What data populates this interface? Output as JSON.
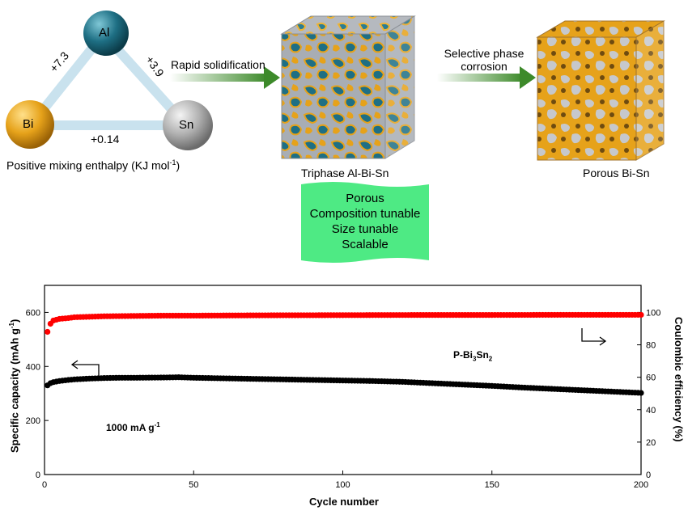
{
  "top": {
    "elements": {
      "al": "Al",
      "bi": "Bi",
      "sn": "Sn"
    },
    "enthalpy": {
      "al_bi": "+7.3",
      "al_sn": "+3.9",
      "bi_sn": "+0.14"
    },
    "triangle_caption_main": "Positive mixing enthalpy (KJ mol",
    "triangle_caption_sup": "-1",
    "triangle_caption_end": ")",
    "step1_label": "Rapid solidification",
    "step2_label_line1": "Selective phase",
    "step2_label_line2": "corrosion",
    "cube1_caption": "Triphase Al-Bi-Sn",
    "cube2_caption": "Porous Bi-Sn",
    "features": [
      "Porous",
      "Composition tunable",
      "Size tunable",
      "Scalable"
    ],
    "colors": {
      "al": "#1e6f84",
      "bi": "#e6a21a",
      "sn": "#b0b0b0",
      "arrow": "#3d8a2a",
      "feature_box": "#4eea84"
    }
  },
  "chart_data": {
    "type": "scatter",
    "xlabel": "Cycle number",
    "ylabel_left_main": "Specific capacity (mAh g",
    "ylabel_left_sup": "-1",
    "ylabel_left_end": ")",
    "ylabel_right": "Coulombic efficiency (%)",
    "xlim": [
      0,
      200
    ],
    "ylim_left": [
      0,
      700
    ],
    "ylim_right": [
      0,
      116.67
    ],
    "x_ticks": [
      0,
      50,
      100,
      150,
      200
    ],
    "y_left_ticks": [
      0,
      200,
      400,
      600
    ],
    "y_right_ticks": [
      0,
      20,
      40,
      60,
      80,
      100
    ],
    "annotation_sample_main": "P-Bi",
    "annotation_sample_sub1": "3",
    "annotation_sample_mid": "Sn",
    "annotation_sample_sub2": "2",
    "annotation_rate_main": "1000 mA g",
    "annotation_rate_sup": "-1",
    "series": [
      {
        "axis": "left",
        "color": "#000000",
        "x": [
          1,
          2,
          3,
          5,
          8,
          10,
          15,
          20,
          25,
          30,
          40,
          45,
          50,
          60,
          70,
          80,
          90,
          100,
          110,
          120,
          130,
          140,
          150,
          160,
          170,
          180,
          190,
          200
        ],
        "y": [
          330,
          338,
          342,
          346,
          350,
          352,
          355,
          357,
          358,
          358,
          359,
          360,
          358,
          356,
          354,
          352,
          350,
          348,
          346,
          343,
          338,
          333,
          328,
          322,
          317,
          312,
          307,
          302
        ]
      },
      {
        "axis": "right",
        "color": "#ff0000",
        "x": [
          1,
          2,
          3,
          5,
          8,
          10,
          15,
          20,
          30,
          40,
          50,
          75,
          100,
          125,
          150,
          175,
          200
        ],
        "y": [
          88,
          93,
          95,
          96,
          96.5,
          97,
          97.3,
          97.6,
          97.8,
          98,
          98,
          98.2,
          98.3,
          98.4,
          98.4,
          98.5,
          98.5
        ]
      }
    ]
  }
}
